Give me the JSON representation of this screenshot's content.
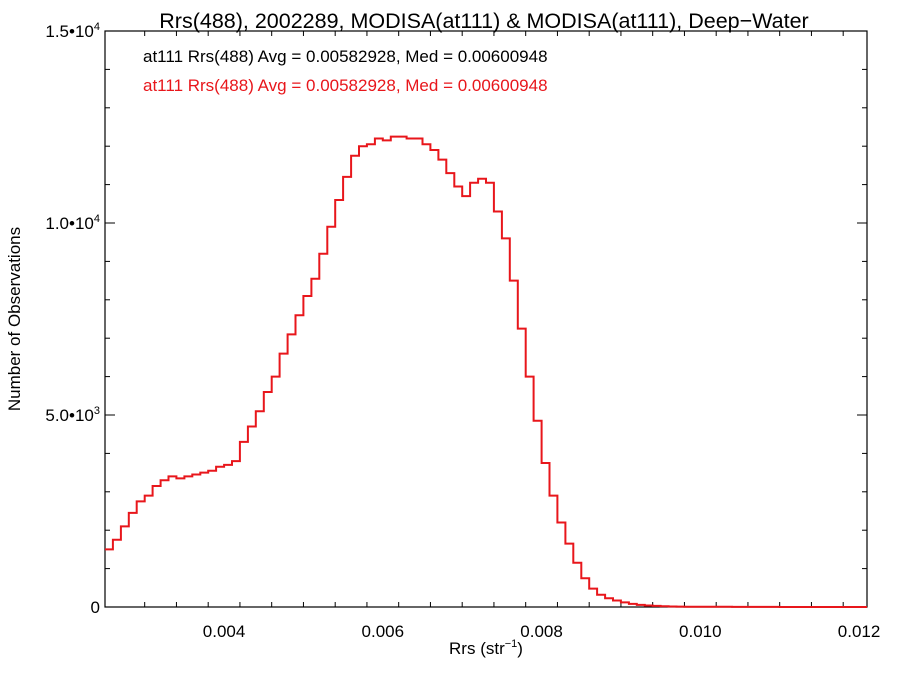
{
  "chart_data": {
    "type": "line",
    "title": "Rrs(488), 2002289, MODISA(at111) & MODISA(at111), Deep−Water",
    "xlabel": {
      "base": "Rrs (str",
      "sup": "−1",
      "close": ")"
    },
    "ylabel": "Number of Observations",
    "xlim": [
      0.0025,
      0.0121
    ],
    "ylim": [
      0,
      15000
    ],
    "x_ticks": [
      {
        "value": 0.004,
        "label": "0.004"
      },
      {
        "value": 0.006,
        "label": "0.006"
      },
      {
        "value": 0.008,
        "label": "0.008"
      },
      {
        "value": 0.01,
        "label": "0.010"
      },
      {
        "value": 0.012,
        "label": "0.012"
      }
    ],
    "y_ticks": [
      {
        "value": 0,
        "label": "0",
        "sup": ""
      },
      {
        "value": 5000,
        "label": "5.0•10",
        "sup": "3"
      },
      {
        "value": 10000,
        "label": "1.0•10",
        "sup": "4"
      },
      {
        "value": 15000,
        "label": "1.5•10",
        "sup": "4"
      }
    ],
    "annotations": [
      {
        "text": "at111 Rrs(488) Avg = 0.00582928, Med = 0.00600948",
        "color": "#000000"
      },
      {
        "text": "at111 Rrs(488) Avg = 0.00582928, Med = 0.00600948",
        "color": "#e8161b"
      }
    ],
    "series": [
      {
        "color": "#e8161b",
        "style": "step",
        "x": [
          0.0025,
          0.0026,
          0.0027,
          0.0028,
          0.0029,
          0.003,
          0.0031,
          0.0032,
          0.0033,
          0.0034,
          0.0035,
          0.0036,
          0.0037,
          0.0038,
          0.0039,
          0.004,
          0.0041,
          0.0042,
          0.0043,
          0.0044,
          0.0045,
          0.0046,
          0.0047,
          0.0048,
          0.0049,
          0.005,
          0.0051,
          0.0052,
          0.0053,
          0.0054,
          0.0055,
          0.0056,
          0.0057,
          0.0058,
          0.0059,
          0.006,
          0.0061,
          0.0062,
          0.0063,
          0.0064,
          0.0065,
          0.0066,
          0.0067,
          0.0068,
          0.0069,
          0.007,
          0.0071,
          0.0072,
          0.0073,
          0.0074,
          0.0075,
          0.0076,
          0.0077,
          0.0078,
          0.0079,
          0.008,
          0.0081,
          0.0082,
          0.0083,
          0.0084,
          0.0085,
          0.0086,
          0.0087,
          0.0088,
          0.0089,
          0.009,
          0.0091,
          0.0092,
          0.0093,
          0.0094,
          0.0095,
          0.0096,
          0.0097,
          0.0098,
          0.0099,
          0.01,
          0.0102,
          0.0104,
          0.0106,
          0.0108,
          0.011,
          0.0112,
          0.0114,
          0.0116,
          0.0118,
          0.012,
          0.0121
        ],
        "values": [
          1500,
          1750,
          2100,
          2450,
          2750,
          2900,
          3150,
          3300,
          3400,
          3350,
          3400,
          3450,
          3500,
          3550,
          3650,
          3700,
          3800,
          4300,
          4700,
          5100,
          5600,
          6000,
          6600,
          7100,
          7600,
          8100,
          8550,
          9200,
          9900,
          10600,
          11200,
          11750,
          12000,
          12050,
          12200,
          12150,
          12250,
          12250,
          12200,
          12200,
          12050,
          11900,
          11650,
          11300,
          10950,
          10700,
          11050,
          11150,
          11050,
          10300,
          9600,
          8500,
          7250,
          6000,
          4850,
          3750,
          2900,
          2200,
          1650,
          1150,
          750,
          480,
          320,
          230,
          170,
          120,
          80,
          55,
          40,
          28,
          20,
          14,
          10,
          8,
          6,
          5,
          4,
          3,
          2,
          2,
          1,
          1,
          1,
          0,
          0,
          0,
          0
        ]
      }
    ]
  }
}
